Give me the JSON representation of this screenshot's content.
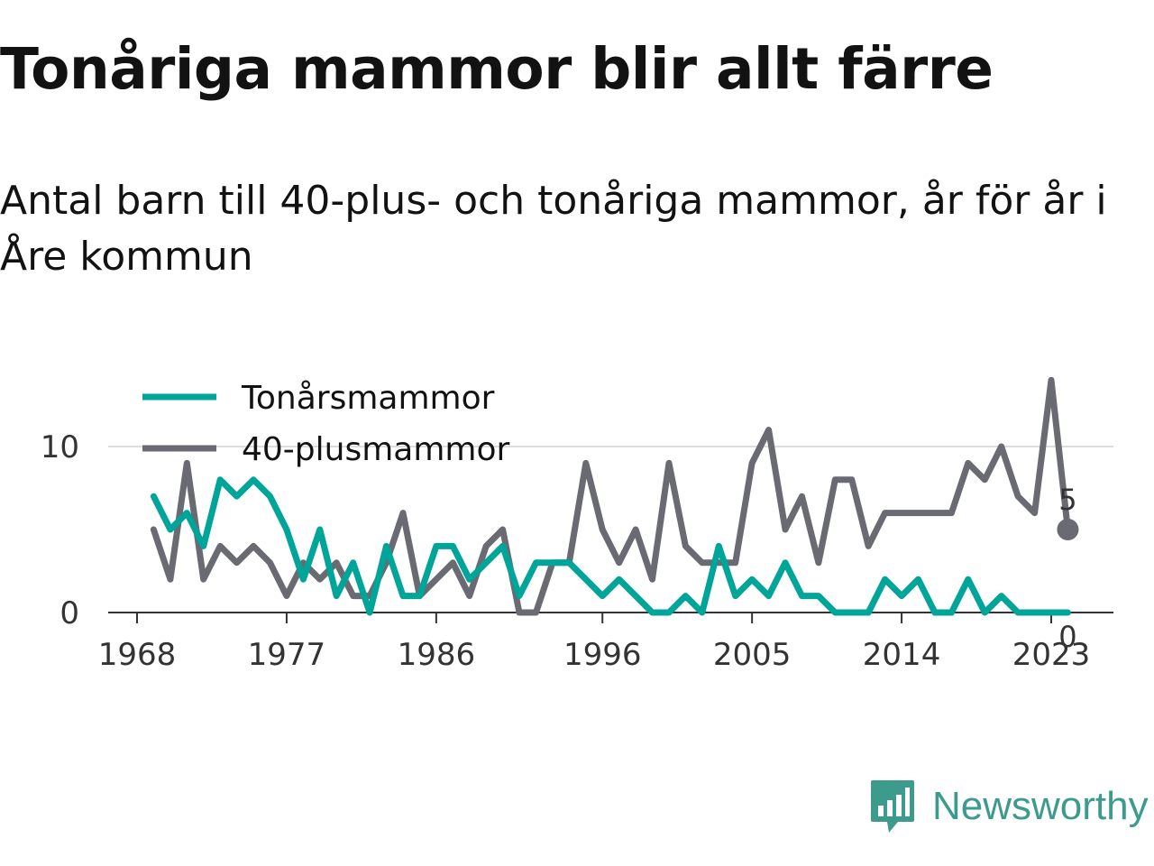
{
  "title": "Tonåriga mammor blir allt färre",
  "subtitle": "Antal barn till 40-plus- och tonåriga mammor, år för år i Åre kommun",
  "brand": {
    "name": "Newsworthy",
    "icon": "newsworthy-logo-icon",
    "color": "#3d9b8e"
  },
  "chart_data": {
    "type": "line",
    "x": [
      1969,
      1970,
      1971,
      1972,
      1973,
      1974,
      1975,
      1976,
      1977,
      1978,
      1979,
      1980,
      1981,
      1982,
      1983,
      1984,
      1985,
      1986,
      1987,
      1988,
      1989,
      1990,
      1991,
      1992,
      1993,
      1994,
      1995,
      1996,
      1997,
      1998,
      1999,
      2000,
      2001,
      2002,
      2003,
      2004,
      2005,
      2006,
      2007,
      2008,
      2009,
      2010,
      2011,
      2012,
      2013,
      2014,
      2015,
      2016,
      2017,
      2018,
      2019,
      2020,
      2021,
      2022,
      2023,
      2024
    ],
    "series": [
      {
        "name": "Tonårsmammor",
        "color": "#00a599",
        "values": [
          7,
          5,
          6,
          4,
          8,
          7,
          8,
          7,
          5,
          2,
          5,
          1,
          3,
          0,
          4,
          1,
          1,
          4,
          4,
          2,
          3,
          4,
          1,
          3,
          3,
          3,
          2,
          1,
          2,
          1,
          0,
          0,
          1,
          0,
          4,
          1,
          2,
          1,
          3,
          1,
          1,
          0,
          0,
          0,
          2,
          1,
          2,
          0,
          0,
          2,
          0,
          1,
          0,
          0,
          0,
          0
        ]
      },
      {
        "name": "40-plusmammor",
        "color": "#6a6a72",
        "values": [
          5,
          2,
          9,
          2,
          4,
          3,
          4,
          3,
          1,
          3,
          2,
          3,
          1,
          1,
          3,
          6,
          1,
          2,
          3,
          1,
          4,
          5,
          0,
          0,
          3,
          3,
          9,
          5,
          3,
          5,
          2,
          9,
          4,
          3,
          3,
          3,
          9,
          11,
          5,
          7,
          3,
          8,
          8,
          4,
          6,
          6,
          6,
          6,
          6,
          9,
          8,
          10,
          7,
          6,
          14,
          5
        ]
      }
    ],
    "x_ticks": [
      1968,
      1977,
      1986,
      1996,
      2005,
      2014,
      2023
    ],
    "y_ticks": [
      0,
      10
    ],
    "xlim": [
      1968,
      2025
    ],
    "ylim": [
      0,
      14
    ],
    "grid": "horizontal",
    "legend": "top-left",
    "end_labels": {
      "Tonårsmammor": "0",
      "40-plusmammor": "5"
    }
  }
}
